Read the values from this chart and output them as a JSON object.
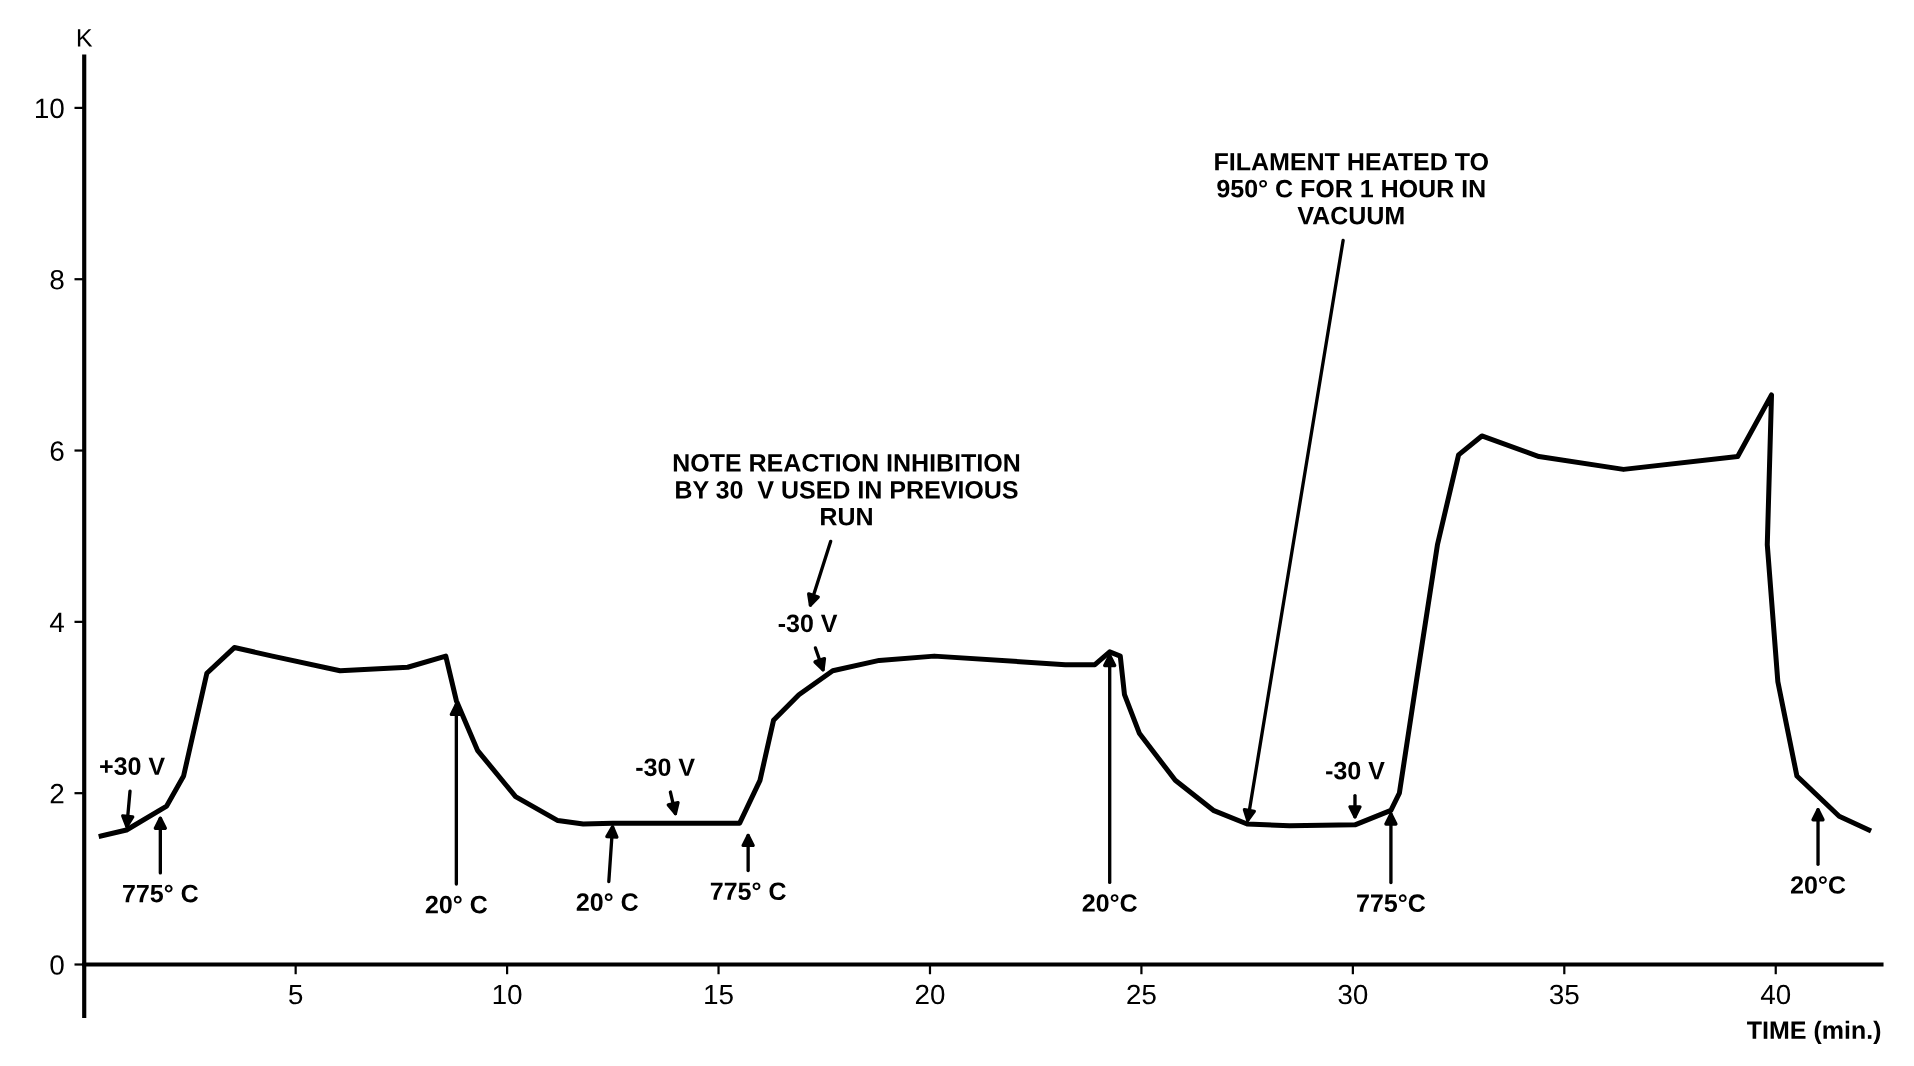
{
  "chart_data": {
    "type": "line",
    "xlabel": "TIME (min.)",
    "ylabel": "K",
    "x": [
      0.4,
      1.0,
      1.95,
      2.35,
      2.9,
      3.55,
      4.45,
      6.05,
      7.65,
      8.55,
      8.8,
      9.3,
      10.2,
      11.2,
      11.8,
      12.5,
      14.0,
      15.5,
      15.98,
      16.3,
      16.9,
      17.7,
      18.8,
      20.1,
      23.2,
      23.9,
      24.25,
      24.5,
      24.6,
      24.95,
      25.8,
      26.7,
      27.5,
      28.5,
      30.05,
      30.9,
      31.1,
      31.5,
      32.0,
      32.5,
      33.05,
      34.4,
      36.4,
      39.1,
      39.9,
      39.8,
      40.05,
      40.5,
      41.5,
      42.2
    ],
    "series": [
      {
        "color": "#000000",
        "values": [
          1.5,
          1.57,
          1.85,
          2.2,
          3.4,
          3.7,
          3.6,
          3.43,
          3.47,
          3.6,
          3.08,
          2.5,
          1.96,
          1.68,
          1.64,
          1.65,
          1.65,
          1.65,
          2.15,
          2.85,
          3.15,
          3.43,
          3.55,
          3.6,
          3.5,
          3.5,
          3.65,
          3.6,
          3.15,
          2.7,
          2.15,
          1.8,
          1.64,
          1.62,
          1.63,
          1.8,
          2.0,
          3.3,
          4.9,
          5.95,
          6.17,
          5.93,
          5.78,
          5.93,
          6.65,
          4.9,
          3.3,
          2.2,
          1.73,
          1.57
        ]
      }
    ],
    "xlim": [
      0,
      42.5
    ],
    "ylim": [
      -0.6,
      10.6
    ],
    "xticks": [
      5,
      10,
      15,
      20,
      25,
      30,
      35,
      40
    ],
    "yticks": [
      0,
      2,
      4,
      6,
      8,
      10
    ],
    "grid": false,
    "legend": false,
    "marker": "none",
    "line_style": "solid",
    "annotations": [
      {
        "text": "+30 V",
        "x": 1.0,
        "y": 1.57
      },
      {
        "text": "775° C",
        "x": 1.8,
        "y": 1.75
      },
      {
        "text": "20° C",
        "x": 8.8,
        "y": 3.08
      },
      {
        "text": "20° C",
        "x": 12.5,
        "y": 1.65
      },
      {
        "text": "-30 V",
        "x": 14.0,
        "y": 1.72
      },
      {
        "text": "775° C",
        "x": 15.7,
        "y": 1.55
      },
      {
        "text": "-30 V",
        "x": 17.5,
        "y": 3.4
      },
      {
        "text": "20°C",
        "x": 24.25,
        "y": 3.65
      },
      {
        "text": "FILAMENT HEATED TO\n950° C FOR 1 HOUR IN\nVACUUM",
        "x": 27.5,
        "y": 1.64
      },
      {
        "text": "-30 V",
        "x": 30.05,
        "y": 1.68
      },
      {
        "text": "775°C",
        "x": 30.9,
        "y": 1.8
      },
      {
        "text": "20°C",
        "x": 41.0,
        "y": 1.85
      },
      "NOTE REACTION INHIBITION\nBY 30  V USED IN PREVIOUS\nRUN"
    ]
  }
}
